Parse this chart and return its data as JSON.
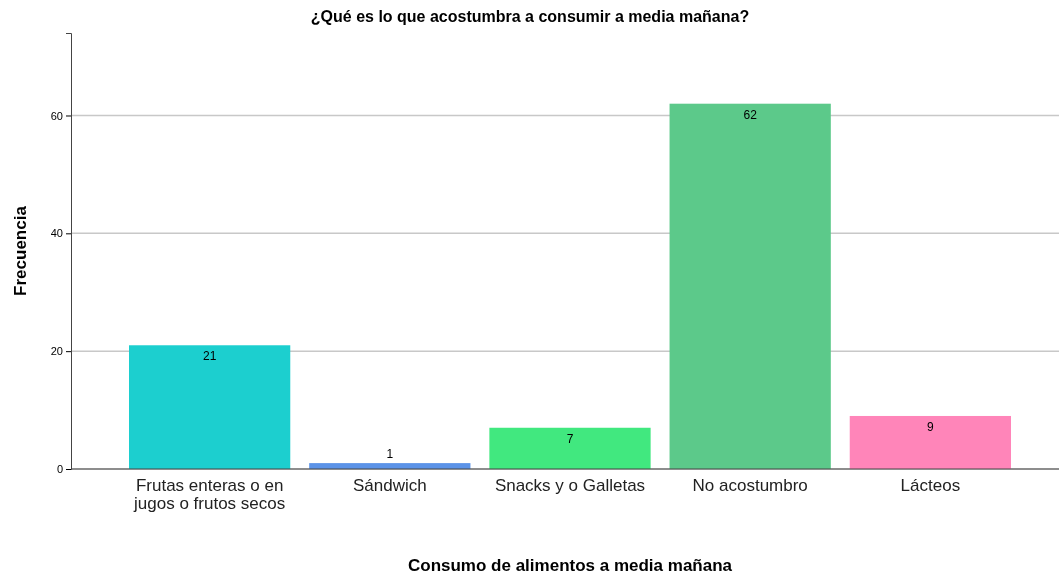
{
  "chart_data": {
    "type": "bar",
    "title": "¿Qué es lo que acostumbra a consumir a media mañana?",
    "xlabel": "Consumo de alimentos a media mañana",
    "ylabel": "Frecuencia",
    "categories": [
      "Frutas enteras o en jugos o frutos secos",
      "Sándwich",
      "Snacks y o Galletas",
      "No acostumbro",
      "Lácteos"
    ],
    "values": [
      21,
      1,
      7,
      62,
      9
    ],
    "colors": [
      "#1ccfcf",
      "#5b93e8",
      "#41e87f",
      "#5cc98a",
      "#ff85b9"
    ],
    "ylim": [
      0,
      74
    ],
    "yticks": [
      0,
      20,
      40,
      60
    ],
    "grid": "y",
    "data_labels": true
  }
}
